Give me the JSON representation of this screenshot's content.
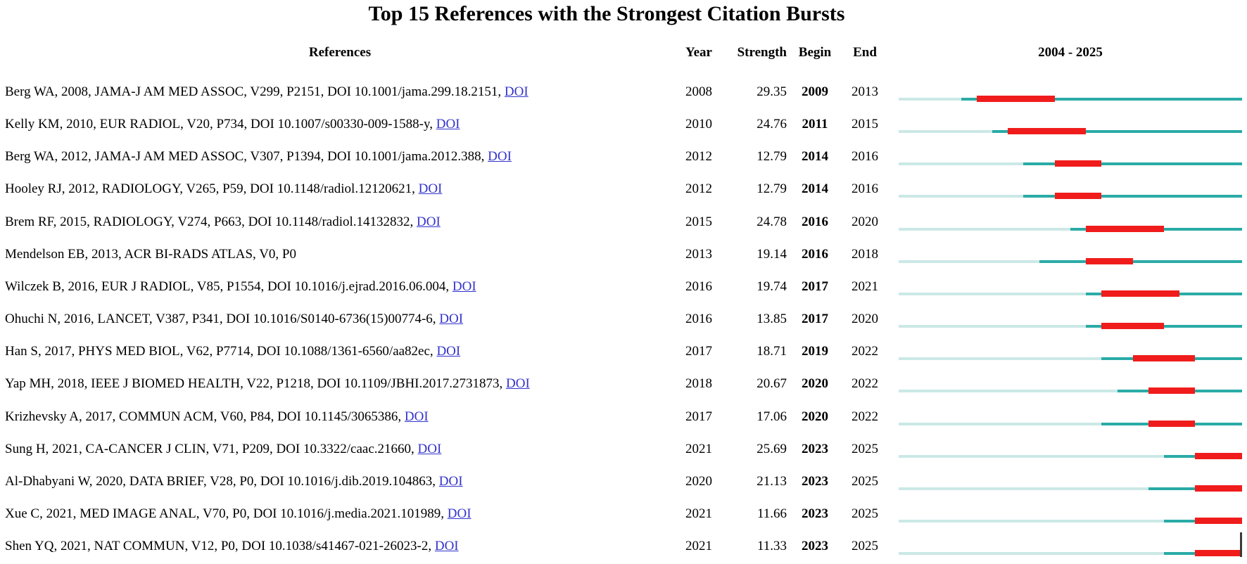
{
  "title": "Top 15 References with the Strongest Citation Bursts",
  "header": {
    "references": "References",
    "year": "Year",
    "strength": "Strength",
    "begin": "Begin",
    "end": "End",
    "period": "2004 - 2025"
  },
  "doi_label": "DOI",
  "colors": {
    "burst_red": "#F01C1C",
    "active_teal": "#2AABA6",
    "inactive_teal": "#CBE9E6",
    "link_blue": "#3333CC",
    "edge_tick": "#3A3A3A"
  },
  "chart_data": {
    "type": "table",
    "title": "Top 15 References with the Strongest Citation Bursts",
    "columns": [
      "References",
      "Year",
      "Strength",
      "Begin",
      "End",
      "2004 - 2025"
    ],
    "timeline": {
      "start_year": 2004,
      "end_year": 2025,
      "label": "2004 - 2025",
      "legend": "pale segment = before publication, teal segment = active years, red segment = citation burst interval"
    },
    "rows": [
      {
        "reference": "Berg WA, 2008, JAMA-J AM MED ASSOC, V299, P2151, DOI 10.1001/jama.299.18.2151,",
        "has_doi": true,
        "year": 2008,
        "strength": "29.35",
        "begin": 2009,
        "end": 2013
      },
      {
        "reference": "Kelly KM, 2010, EUR RADIOL, V20, P734, DOI 10.1007/s00330-009-1588-y,",
        "has_doi": true,
        "year": 2010,
        "strength": "24.76",
        "begin": 2011,
        "end": 2015
      },
      {
        "reference": "Berg WA, 2012, JAMA-J AM MED ASSOC, V307, P1394, DOI 10.1001/jama.2012.388,",
        "has_doi": true,
        "year": 2012,
        "strength": "12.79",
        "begin": 2014,
        "end": 2016
      },
      {
        "reference": "Hooley RJ, 2012, RADIOLOGY, V265, P59, DOI 10.1148/radiol.12120621,",
        "has_doi": true,
        "year": 2012,
        "strength": "12.79",
        "begin": 2014,
        "end": 2016
      },
      {
        "reference": "Brem RF, 2015, RADIOLOGY, V274, P663, DOI 10.1148/radiol.14132832,",
        "has_doi": true,
        "year": 2015,
        "strength": "24.78",
        "begin": 2016,
        "end": 2020
      },
      {
        "reference": "Mendelson EB, 2013, ACR BI-RADS ATLAS, V0, P0",
        "has_doi": false,
        "year": 2013,
        "strength": "19.14",
        "begin": 2016,
        "end": 2018
      },
      {
        "reference": "Wilczek B, 2016, EUR J RADIOL, V85, P1554, DOI 10.1016/j.ejrad.2016.06.004,",
        "has_doi": true,
        "year": 2016,
        "strength": "19.74",
        "begin": 2017,
        "end": 2021
      },
      {
        "reference": "Ohuchi N, 2016, LANCET, V387, P341, DOI 10.1016/S0140-6736(15)00774-6,",
        "has_doi": true,
        "year": 2016,
        "strength": "13.85",
        "begin": 2017,
        "end": 2020
      },
      {
        "reference": "Han S, 2017, PHYS MED BIOL, V62, P7714, DOI 10.1088/1361-6560/aa82ec,",
        "has_doi": true,
        "year": 2017,
        "strength": "18.71",
        "begin": 2019,
        "end": 2022
      },
      {
        "reference": "Yap MH, 2018, IEEE J BIOMED HEALTH, V22, P1218, DOI 10.1109/JBHI.2017.2731873,",
        "has_doi": true,
        "year": 2018,
        "strength": "20.67",
        "begin": 2020,
        "end": 2022
      },
      {
        "reference": "Krizhevsky A, 2017, COMMUN ACM, V60, P84, DOI 10.1145/3065386,",
        "has_doi": true,
        "year": 2017,
        "strength": "17.06",
        "begin": 2020,
        "end": 2022
      },
      {
        "reference": "Sung H, 2021, CA-CANCER J CLIN, V71, P209, DOI 10.3322/caac.21660,",
        "has_doi": true,
        "year": 2021,
        "strength": "25.69",
        "begin": 2023,
        "end": 2025
      },
      {
        "reference": "Al-Dhabyani W, 2020, DATA BRIEF, V28, P0, DOI 10.1016/j.dib.2019.104863,",
        "has_doi": true,
        "year": 2020,
        "strength": "21.13",
        "begin": 2023,
        "end": 2025
      },
      {
        "reference": "Xue C, 2021, MED IMAGE ANAL, V70, P0, DOI 10.1016/j.media.2021.101989,",
        "has_doi": true,
        "year": 2021,
        "strength": "11.66",
        "begin": 2023,
        "end": 2025
      },
      {
        "reference": "Shen YQ, 2021, NAT COMMUN, V12, P0, DOI 10.1038/s41467-021-26023-2,",
        "has_doi": true,
        "year": 2021,
        "strength": "11.33",
        "begin": 2023,
        "end": 2025
      }
    ]
  }
}
